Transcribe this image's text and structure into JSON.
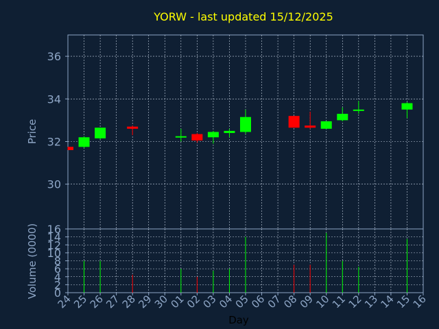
{
  "chart_data": {
    "type": "candlestick",
    "title": "YORW - last updated 15/12/2025",
    "xlabel": "Day",
    "price_panel": {
      "ylabel": "Price",
      "ylim": [
        27.9,
        37.0
      ],
      "yticks": [
        30,
        32,
        34,
        36
      ],
      "grid": true
    },
    "volume_panel": {
      "ylabel": "Volume (0000)",
      "ylim": [
        0,
        16
      ],
      "yticks": [
        0,
        2,
        4,
        6,
        8,
        10,
        12,
        14,
        16
      ],
      "grid": true
    },
    "x_tick_labels": [
      "24",
      "25",
      "26",
      "27",
      "28",
      "29",
      "30",
      "01",
      "02",
      "03",
      "04",
      "05",
      "06",
      "07",
      "08",
      "09",
      "10",
      "11",
      "12",
      "13",
      "14",
      "15",
      "16"
    ],
    "candles": [
      {
        "day": "24",
        "open": 31.75,
        "high": 31.75,
        "low": 31.6,
        "close": 31.6,
        "volume": null
      },
      {
        "day": "25",
        "open": 31.75,
        "high": 32.25,
        "low": 31.7,
        "close": 32.2,
        "volume": 8.0
      },
      {
        "day": "26",
        "open": 32.15,
        "high": 32.65,
        "low": 32.1,
        "close": 32.65,
        "volume": 8.0
      },
      {
        "day": "28",
        "open": 32.7,
        "high": 32.75,
        "low": 32.3,
        "close": 32.6,
        "volume": 4.5
      },
      {
        "day": "01",
        "open": 32.2,
        "high": 32.6,
        "low": 32.0,
        "close": 32.25,
        "volume": 6.0
      },
      {
        "day": "02",
        "open": 32.35,
        "high": 32.4,
        "low": 31.95,
        "close": 32.05,
        "volume": 4.0
      },
      {
        "day": "03",
        "open": 32.2,
        "high": 32.5,
        "low": 31.9,
        "close": 32.45,
        "volume": 5.5
      },
      {
        "day": "04",
        "open": 32.4,
        "high": 32.6,
        "low": 32.2,
        "close": 32.5,
        "volume": 6.0
      },
      {
        "day": "05",
        "open": 32.45,
        "high": 33.5,
        "low": 32.35,
        "close": 33.15,
        "volume": 14.0
      },
      {
        "day": "08",
        "open": 33.2,
        "high": 33.2,
        "low": 32.65,
        "close": 32.65,
        "volume": 7.0
      },
      {
        "day": "09",
        "open": 32.75,
        "high": 33.4,
        "low": 32.6,
        "close": 32.65,
        "volume": 7.0
      },
      {
        "day": "10",
        "open": 32.6,
        "high": 32.95,
        "low": 32.6,
        "close": 32.95,
        "volume": 15.0
      },
      {
        "day": "11",
        "open": 33.0,
        "high": 33.6,
        "low": 32.95,
        "close": 33.3,
        "volume": 8.0
      },
      {
        "day": "12",
        "open": 33.45,
        "high": 33.9,
        "low": 33.3,
        "close": 33.5,
        "volume": 6.5
      },
      {
        "day": "15",
        "open": 33.5,
        "high": 33.85,
        "low": 33.1,
        "close": 33.8,
        "volume": 13.5
      }
    ],
    "colors": {
      "background": "#0f1f33",
      "axis": "#8ea6c6",
      "grid": "#c8d4e4",
      "title": "#ffff00",
      "up": "#00ff00",
      "down": "#ff0000"
    }
  }
}
